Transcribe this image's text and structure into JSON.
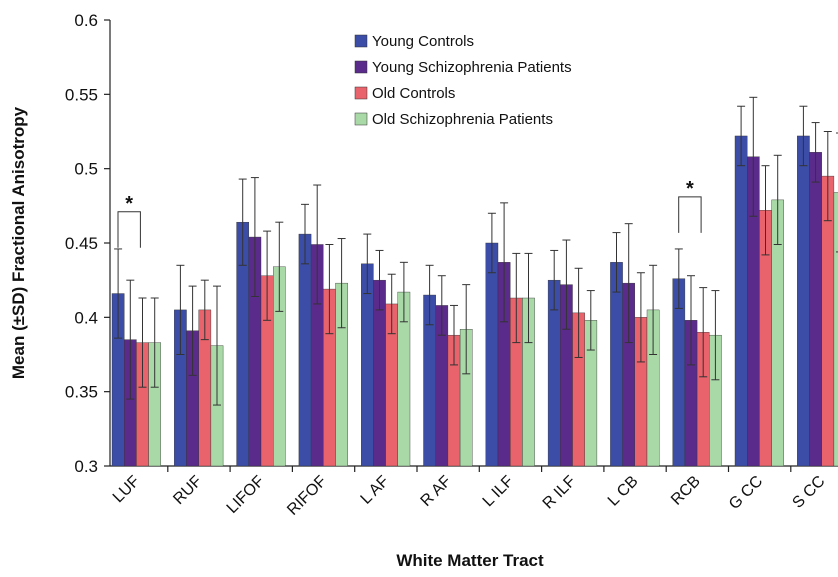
{
  "chart_data": {
    "type": "bar",
    "x_label": "White Matter Tract",
    "y_label": "Mean (±SD) Fractional Anisotropy",
    "categories": [
      "LUF",
      "RUF",
      "LIFOF",
      "RIFOF",
      "L AF",
      "R AF",
      "L ILF",
      "R ILF",
      "L CB",
      "RCB",
      "G CC",
      "S CC"
    ],
    "series": [
      {
        "name": "Young Controls",
        "color": "#3b4da6",
        "values": [
          0.416,
          0.405,
          0.464,
          0.456,
          0.436,
          0.415,
          0.45,
          0.425,
          0.437,
          0.426,
          0.522,
          0.522
        ],
        "errors": [
          0.03,
          0.03,
          0.029,
          0.02,
          0.02,
          0.02,
          0.02,
          0.02,
          0.02,
          0.02,
          0.02,
          0.02
        ]
      },
      {
        "name": "Young Schizophrenia Patients",
        "color": "#5b2b8c",
        "values": [
          0.385,
          0.391,
          0.454,
          0.449,
          0.425,
          0.408,
          0.437,
          0.422,
          0.423,
          0.398,
          0.508,
          0.511
        ],
        "errors": [
          0.04,
          0.03,
          0.04,
          0.04,
          0.02,
          0.02,
          0.04,
          0.03,
          0.04,
          0.03,
          0.04,
          0.02
        ]
      },
      {
        "name": "Old Controls",
        "color": "#e8636b",
        "values": [
          0.383,
          0.405,
          0.428,
          0.419,
          0.409,
          0.388,
          0.413,
          0.403,
          0.4,
          0.39,
          0.472,
          0.495
        ],
        "errors": [
          0.03,
          0.02,
          0.03,
          0.03,
          0.02,
          0.02,
          0.03,
          0.03,
          0.03,
          0.03,
          0.03,
          0.03
        ]
      },
      {
        "name": "Old Schizophrenia Patients",
        "color": "#a9d9a7",
        "values": [
          0.383,
          0.381,
          0.434,
          0.423,
          0.417,
          0.392,
          0.413,
          0.398,
          0.405,
          0.388,
          0.479,
          0.484
        ],
        "errors": [
          0.03,
          0.04,
          0.03,
          0.03,
          0.02,
          0.03,
          0.03,
          0.02,
          0.03,
          0.03,
          0.03,
          0.04
        ]
      }
    ],
    "ylim": [
      0.3,
      0.6
    ],
    "yticks": [
      0.3,
      0.35,
      0.4,
      0.45,
      0.5,
      0.55,
      0.6
    ],
    "annotations": [
      {
        "text": "*",
        "category": "LUF"
      },
      {
        "text": "*",
        "category": "RCB"
      }
    ]
  }
}
